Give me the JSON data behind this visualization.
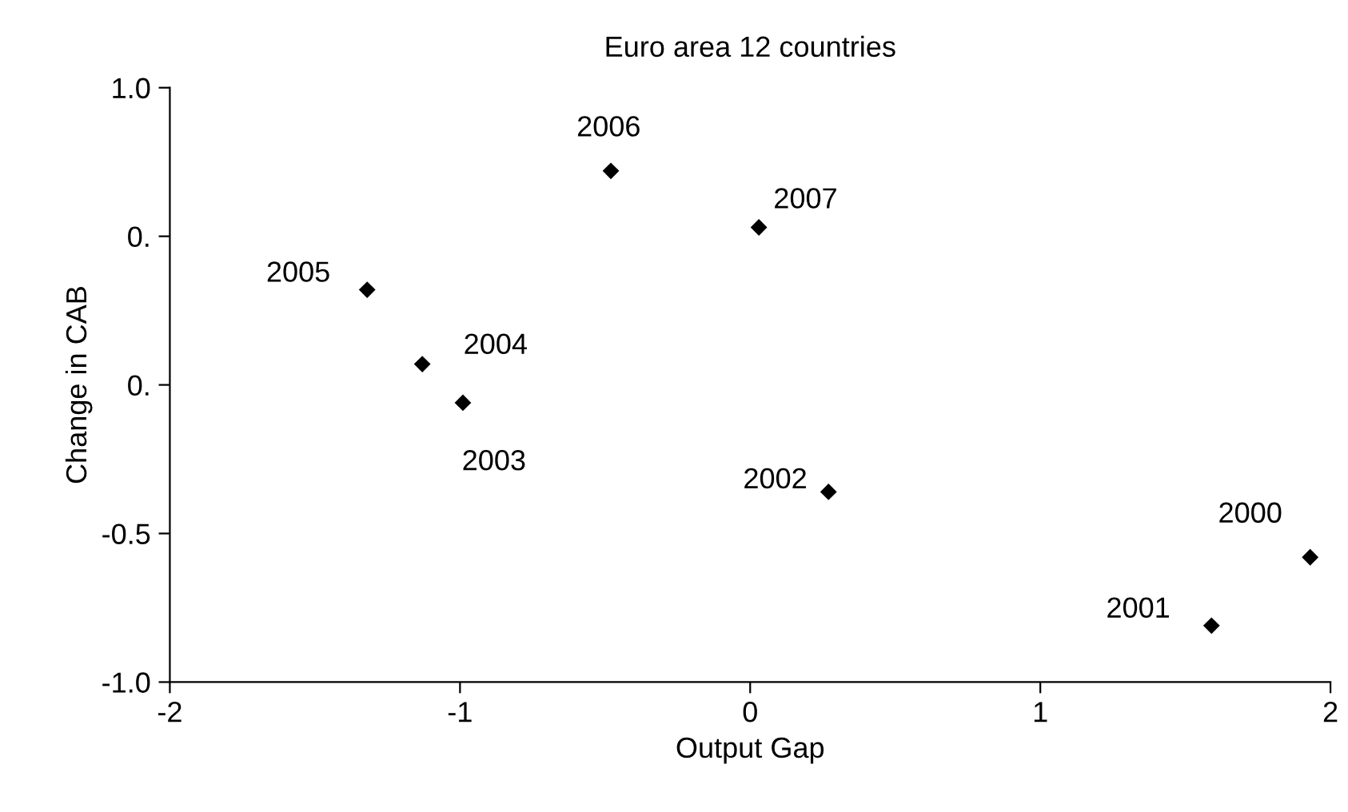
{
  "chart_data": {
    "type": "scatter",
    "title": "Euro area 12 countries",
    "xlabel": "Output Gap",
    "ylabel": "Change in CAB",
    "x": [
      1.93,
      1.59,
      0.27,
      -0.99,
      -1.13,
      -1.32,
      -0.48,
      0.03
    ],
    "series": [
      {
        "color": "#000000",
        "values": [
          -0.58,
          -0.81,
          -0.36,
          -0.06,
          0.07,
          0.32,
          0.72,
          0.53
        ]
      }
    ],
    "marker": "diamond",
    "xlim": [
      -2,
      2
    ],
    "xticks": [
      -2,
      -1,
      0,
      1,
      2
    ],
    "ylim": [
      -1.0,
      1.0
    ],
    "yticks": [
      {
        "value": -1.0,
        "label": "-1.0"
      },
      {
        "value": -0.5,
        "label": "-0.5"
      },
      {
        "value": 0,
        "label": "0."
      },
      {
        "value": 0.5,
        "label": "0."
      },
      {
        "value": 1.0,
        "label": "1.0"
      }
    ],
    "grid": false,
    "legend": false,
    "annotations": [
      {
        "text": "2000",
        "x": 1.93,
        "y": -0.58
      },
      {
        "text": "2001",
        "x": 1.59,
        "y": -0.81
      },
      {
        "text": "2002",
        "x": 0.27,
        "y": -0.36
      },
      {
        "text": "2003",
        "x": -0.99,
        "y": -0.06
      },
      {
        "text": "2004",
        "x": -1.13,
        "y": 0.07
      },
      {
        "text": "2005",
        "x": -1.32,
        "y": 0.32
      },
      {
        "text": "2006",
        "x": -0.48,
        "y": 0.72
      },
      {
        "text": "2007",
        "x": 0.03,
        "y": 0.53
      }
    ]
  }
}
